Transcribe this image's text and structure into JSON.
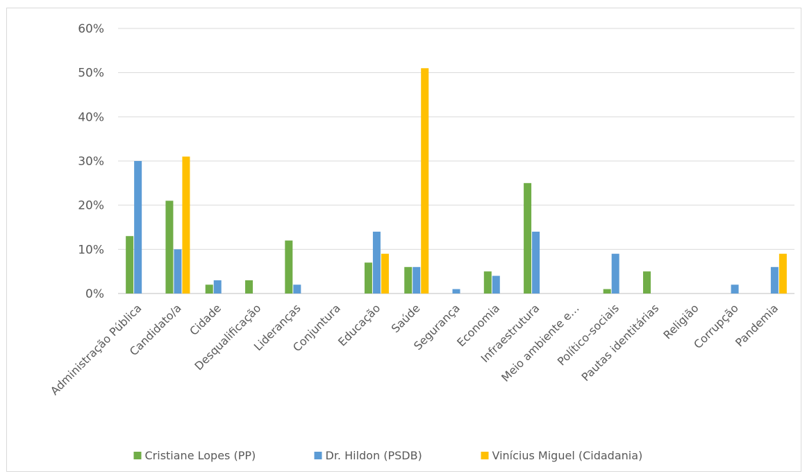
{
  "chart_data": {
    "type": "bar",
    "categories": [
      "Administração Pública",
      "Candidato/a",
      "Cidade",
      "Desqualificação",
      "Lideranças",
      "Conjuntura",
      "Educação",
      "Saúde",
      "Segurança",
      "Economia",
      "Infraestrutura",
      "Meio ambiente e…",
      "Político-sociais",
      "Pautas identitárias",
      "Religião",
      "Corrupção",
      "Pandemia"
    ],
    "series": [
      {
        "name": "Cristiane Lopes (PP)",
        "color": "#70ad47",
        "values": [
          13,
          21,
          2,
          3,
          12,
          0,
          7,
          6,
          0,
          5,
          25,
          0,
          1,
          5,
          0,
          0,
          0
        ]
      },
      {
        "name": "Dr. Hildon (PSDB)",
        "color": "#5b9bd5",
        "values": [
          30,
          10,
          3,
          0,
          2,
          0,
          14,
          6,
          1,
          4,
          14,
          0,
          9,
          0,
          0,
          2,
          6
        ]
      },
      {
        "name": "Vinícius Miguel (Cidadania)",
        "color": "#ffc000",
        "values": [
          0,
          31,
          0,
          0,
          0,
          0,
          9,
          51,
          0,
          0,
          0,
          0,
          0,
          0,
          0,
          0,
          9
        ]
      }
    ],
    "ylim": [
      0,
      60
    ],
    "yticks": [
      "0%",
      "10%",
      "20%",
      "30%",
      "40%",
      "50%",
      "60%"
    ],
    "grid": true,
    "legend_position": "bottom"
  }
}
